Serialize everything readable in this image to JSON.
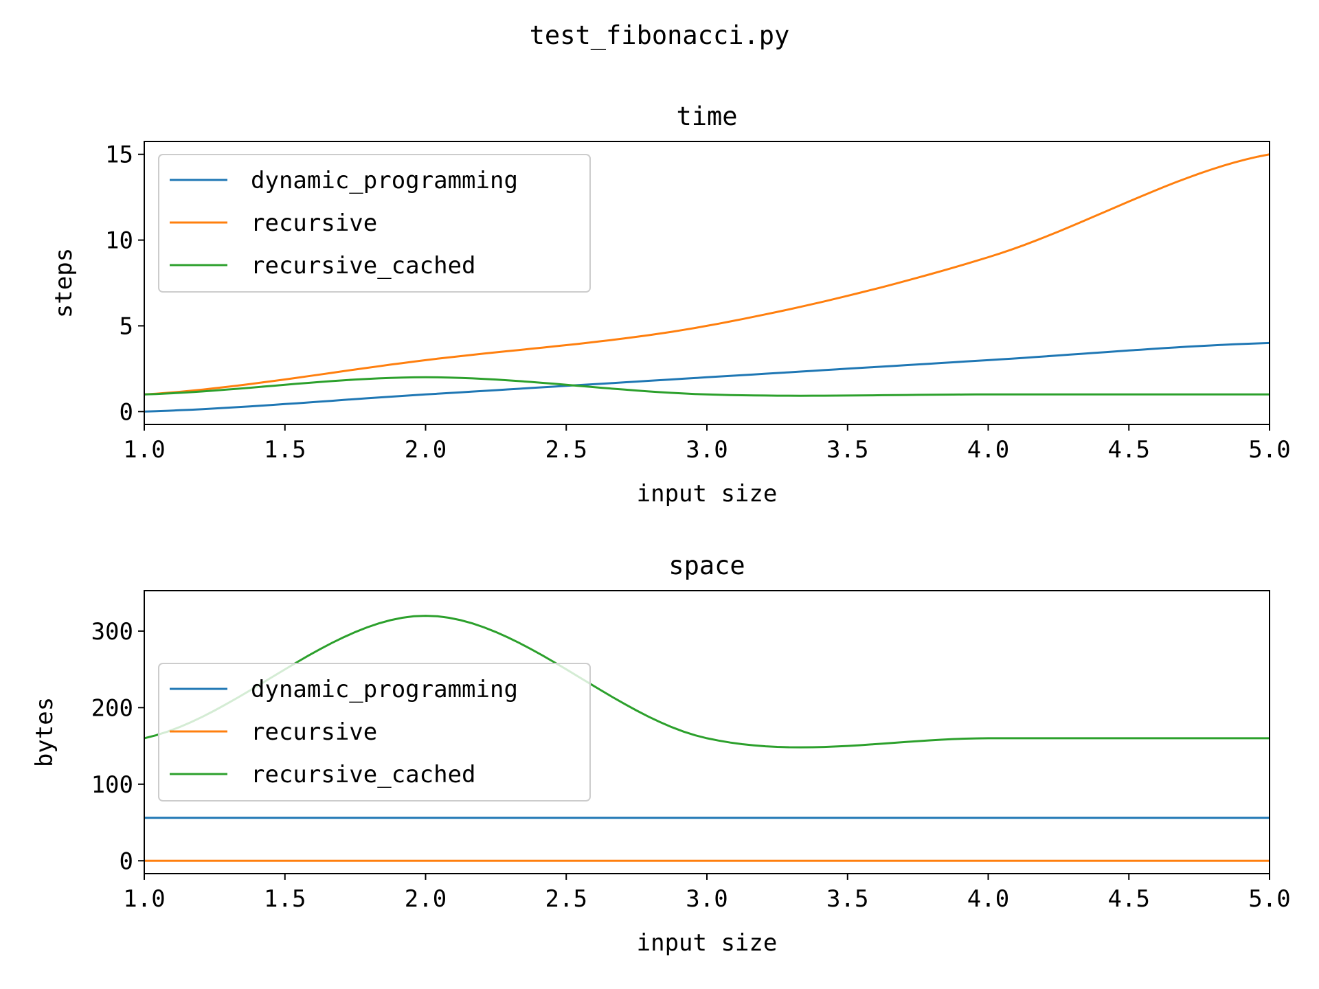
{
  "figure": {
    "suptitle": "test_fibonacci.py"
  },
  "chart_data": [
    {
      "type": "line",
      "title": "time",
      "xlabel": "input size",
      "ylabel": "steps",
      "xlim": [
        1.0,
        5.0
      ],
      "ylim": [
        -0.75,
        15.75
      ],
      "xticks": [
        1.0,
        1.5,
        2.0,
        2.5,
        3.0,
        3.5,
        4.0,
        4.5,
        5.0
      ],
      "xtick_labels": [
        "1.0",
        "1.5",
        "2.0",
        "2.5",
        "3.0",
        "3.5",
        "4.0",
        "4.5",
        "5.0"
      ],
      "yticks": [
        0,
        5,
        10,
        15
      ],
      "ytick_labels": [
        "0",
        "5",
        "10",
        "15"
      ],
      "grid": false,
      "legend": "top-left",
      "series": [
        {
          "name": "dynamic_programming",
          "color": "#1f77b4",
          "x": [
            1.0,
            2.0,
            3.0,
            4.0,
            5.0
          ],
          "y": [
            0,
            1,
            2,
            3,
            4
          ]
        },
        {
          "name": "recursive",
          "color": "#ff7f0e",
          "x": [
            1.0,
            2.0,
            3.0,
            4.0,
            5.0
          ],
          "y": [
            1,
            3,
            5,
            9,
            15
          ]
        },
        {
          "name": "recursive_cached",
          "color": "#2ca02c",
          "x": [
            1.0,
            2.0,
            3.0,
            4.0,
            5.0
          ],
          "y": [
            1,
            2,
            1,
            1,
            1
          ]
        }
      ]
    },
    {
      "type": "line",
      "title": "space",
      "xlabel": "input size",
      "ylabel": "bytes",
      "xlim": [
        1.0,
        5.0
      ],
      "ylim": [
        -16.8,
        352.8
      ],
      "xticks": [
        1.0,
        1.5,
        2.0,
        2.5,
        3.0,
        3.5,
        4.0,
        4.5,
        5.0
      ],
      "xtick_labels": [
        "1.0",
        "1.5",
        "2.0",
        "2.5",
        "3.0",
        "3.5",
        "4.0",
        "4.5",
        "5.0"
      ],
      "yticks": [
        0,
        100,
        200,
        300
      ],
      "ytick_labels": [
        "0",
        "100",
        "200",
        "300"
      ],
      "grid": false,
      "legend": "center-left",
      "series": [
        {
          "name": "dynamic_programming",
          "color": "#1f77b4",
          "x": [
            1.0,
            2.0,
            3.0,
            4.0,
            5.0
          ],
          "y": [
            56,
            56,
            56,
            56,
            56
          ]
        },
        {
          "name": "recursive",
          "color": "#ff7f0e",
          "x": [
            1.0,
            2.0,
            3.0,
            4.0,
            5.0
          ],
          "y": [
            0,
            0,
            0,
            0,
            0
          ]
        },
        {
          "name": "recursive_cached",
          "color": "#2ca02c",
          "x": [
            1.0,
            2.0,
            3.0,
            4.0,
            5.0
          ],
          "y": [
            160,
            320,
            160,
            160,
            160
          ]
        }
      ]
    }
  ]
}
